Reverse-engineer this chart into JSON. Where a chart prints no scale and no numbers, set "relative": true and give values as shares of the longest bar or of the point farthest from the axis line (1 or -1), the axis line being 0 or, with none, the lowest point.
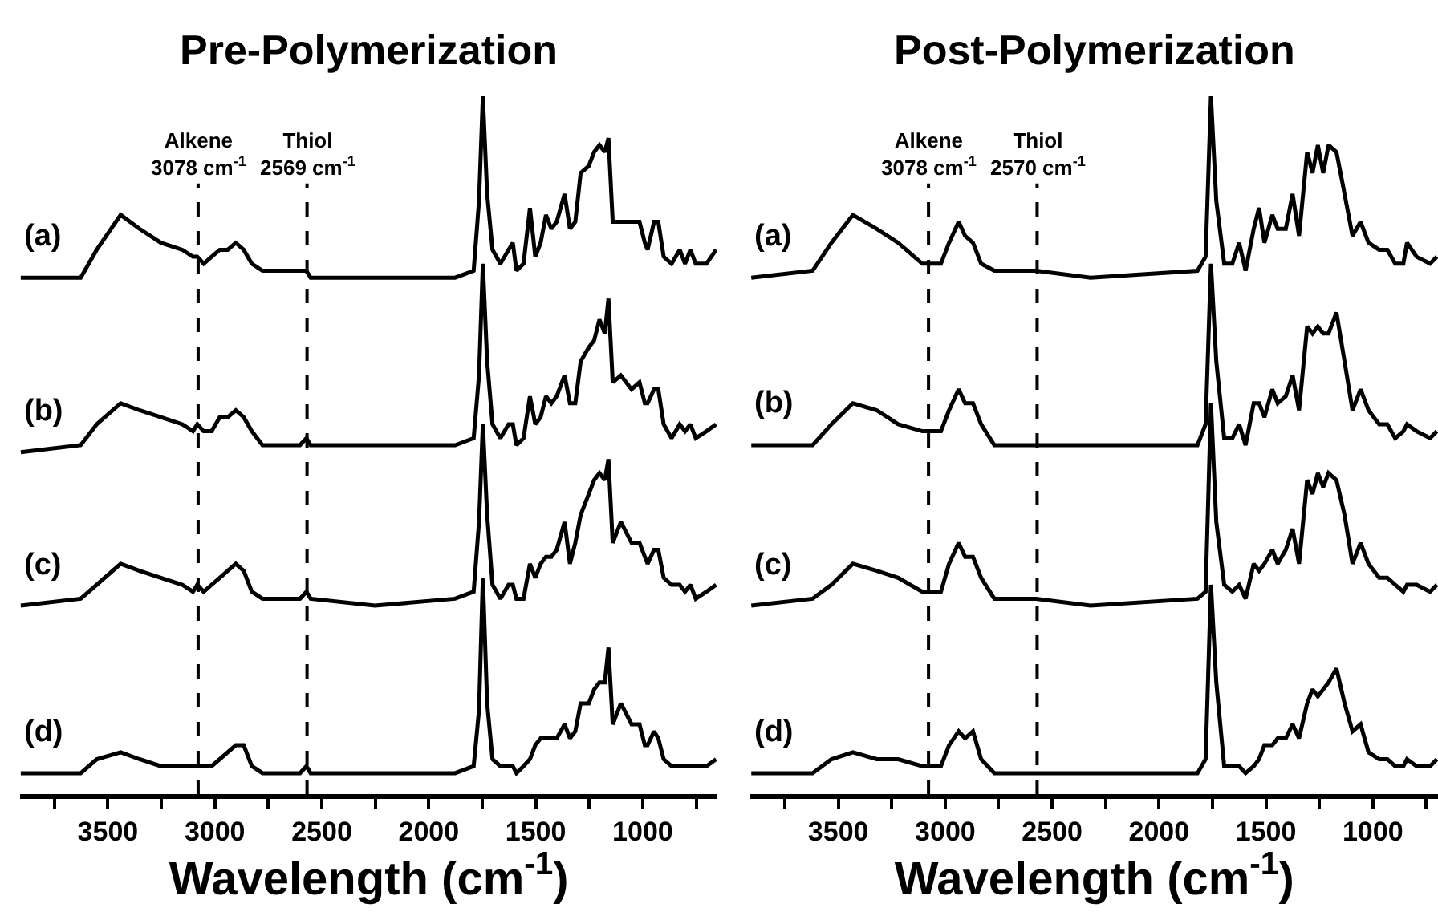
{
  "chart_data": [
    {
      "type": "line",
      "title": "Pre-Polymerization",
      "xlabel": "Wavelength (cm$^{-1}$)",
      "relative": true,
      "tick_labels": "x",
      "xlim": [
        3910,
        650
      ],
      "xticks": [
        {
          "value": 3750,
          "label": null
        },
        3500,
        {
          "value": 3250,
          "label": null
        },
        3000,
        {
          "value": 2750,
          "label": null
        },
        2500,
        {
          "value": 2250,
          "label": null
        },
        2000,
        {
          "value": 1750,
          "label": null
        },
        1500,
        {
          "value": 1250,
          "label": null
        },
        1000,
        {
          "value": 750,
          "label": null
        }
      ],
      "x": [
        3907,
        3627,
        3552,
        3440,
        3352,
        3252,
        3152,
        3102,
        3082,
        3052,
        3015,
        2977,
        2940,
        2902,
        2865,
        2827,
        2777,
        2702,
        2602,
        2572,
        2552,
        2252,
        1877,
        1790,
        1765,
        1747,
        1727,
        1702,
        1665,
        1627,
        1607,
        1590,
        1557,
        1527,
        1502,
        1477,
        1452,
        1427,
        1402,
        1365,
        1340,
        1315,
        1290,
        1252,
        1227,
        1202,
        1177,
        1160,
        1140,
        1102,
        1052,
        1015,
        990,
        977,
        947,
        927,
        902,
        865,
        827,
        802,
        777,
        752,
        702,
        657
      ],
      "ref_lines": [
        {
          "axis": "x",
          "value": 3078,
          "label": "Alkene\n3078 cm$^{-1}$",
          "color": "#000000",
          "line_style": "dashed"
        },
        {
          "axis": "x",
          "value": 2569,
          "label": "Thiol\n2569 cm$^{-1}$",
          "color": "#000000",
          "line_style": "dashed"
        }
      ],
      "series": [
        {
          "name": "(a)",
          "color": "#000000",
          "values": [
            0.74,
            0.74,
            0.78,
            0.83,
            0.81,
            0.79,
            0.78,
            0.77,
            0.77,
            0.76,
            0.77,
            0.78,
            0.78,
            0.79,
            0.78,
            0.76,
            0.75,
            0.75,
            0.75,
            0.75,
            0.74,
            0.74,
            0.74,
            0.75,
            0.85,
            1.0,
            0.86,
            0.78,
            0.76,
            0.78,
            0.79,
            0.75,
            0.76,
            0.84,
            0.77,
            0.79,
            0.83,
            0.81,
            0.82,
            0.86,
            0.81,
            0.82,
            0.89,
            0.9,
            0.92,
            0.93,
            0.92,
            0.94,
            0.82,
            0.82,
            0.82,
            0.82,
            0.79,
            0.78,
            0.82,
            0.82,
            0.77,
            0.76,
            0.78,
            0.76,
            0.78,
            0.76,
            0.76,
            0.78
          ]
        },
        {
          "name": "(b)",
          "color": "#000000",
          "values": [
            0.49,
            0.5,
            0.53,
            0.56,
            0.55,
            0.54,
            0.53,
            0.52,
            0.53,
            0.52,
            0.52,
            0.54,
            0.54,
            0.55,
            0.54,
            0.52,
            0.5,
            0.5,
            0.5,
            0.51,
            0.5,
            0.5,
            0.5,
            0.51,
            0.6,
            0.76,
            0.62,
            0.53,
            0.51,
            0.53,
            0.53,
            0.5,
            0.51,
            0.57,
            0.53,
            0.54,
            0.57,
            0.56,
            0.57,
            0.6,
            0.56,
            0.56,
            0.62,
            0.64,
            0.65,
            0.68,
            0.66,
            0.71,
            0.59,
            0.6,
            0.58,
            0.59,
            0.56,
            0.56,
            0.58,
            0.58,
            0.53,
            0.51,
            0.53,
            0.52,
            0.53,
            0.51,
            0.52,
            0.53
          ]
        },
        {
          "name": "(c)",
          "color": "#000000",
          "values": [
            0.27,
            0.28,
            0.3,
            0.33,
            0.32,
            0.31,
            0.3,
            0.29,
            0.3,
            0.29,
            0.3,
            0.31,
            0.32,
            0.33,
            0.32,
            0.29,
            0.28,
            0.28,
            0.28,
            0.29,
            0.28,
            0.27,
            0.28,
            0.29,
            0.39,
            0.53,
            0.4,
            0.3,
            0.28,
            0.3,
            0.3,
            0.28,
            0.28,
            0.33,
            0.31,
            0.33,
            0.34,
            0.34,
            0.35,
            0.39,
            0.33,
            0.36,
            0.4,
            0.43,
            0.45,
            0.46,
            0.45,
            0.48,
            0.36,
            0.39,
            0.36,
            0.36,
            0.34,
            0.33,
            0.35,
            0.35,
            0.31,
            0.3,
            0.3,
            0.29,
            0.3,
            0.28,
            0.29,
            0.3
          ]
        },
        {
          "name": "(d)",
          "color": "#000000",
          "values": [
            0.03,
            0.03,
            0.05,
            0.06,
            0.05,
            0.04,
            0.04,
            0.04,
            0.04,
            0.04,
            0.04,
            0.05,
            0.06,
            0.07,
            0.07,
            0.04,
            0.03,
            0.03,
            0.03,
            0.04,
            0.03,
            0.03,
            0.03,
            0.04,
            0.12,
            0.31,
            0.13,
            0.05,
            0.04,
            0.04,
            0.04,
            0.03,
            0.04,
            0.05,
            0.07,
            0.08,
            0.08,
            0.08,
            0.08,
            0.1,
            0.08,
            0.09,
            0.13,
            0.13,
            0.15,
            0.16,
            0.16,
            0.21,
            0.1,
            0.13,
            0.1,
            0.1,
            0.07,
            0.07,
            0.09,
            0.08,
            0.05,
            0.04,
            0.04,
            0.04,
            0.04,
            0.04,
            0.04,
            0.05
          ]
        }
      ]
    },
    {
      "type": "line",
      "title": "Post-Polymerization",
      "xlabel": "Wavelength (cm$^{-1}$)",
      "relative": true,
      "tick_labels": "x",
      "xlim": [
        3910,
        695
      ],
      "xticks": [
        {
          "value": 3750,
          "label": null
        },
        3500,
        {
          "value": 3250,
          "label": null
        },
        3000,
        {
          "value": 2750,
          "label": null
        },
        2500,
        {
          "value": 2250,
          "label": null
        },
        2000,
        {
          "value": 1750,
          "label": null
        },
        1500,
        {
          "value": 1250,
          "label": null
        },
        1000,
        {
          "value": 750,
          "label": null
        }
      ],
      "x": [
        3907,
        3620,
        3532,
        3432,
        3320,
        3220,
        3107,
        3070,
        3020,
        2982,
        2937,
        2907,
        2870,
        2832,
        2770,
        2575,
        2320,
        1820,
        1782,
        1757,
        1732,
        1695,
        1657,
        1625,
        1595,
        1557,
        1532,
        1507,
        1470,
        1445,
        1407,
        1375,
        1345,
        1307,
        1282,
        1257,
        1232,
        1207,
        1170,
        1132,
        1095,
        1057,
        1020,
        970,
        932,
        895,
        857,
        840,
        795,
        732,
        700
      ],
      "ref_lines": [
        {
          "axis": "x",
          "value": 3078,
          "label": "Alkene\n3078 cm$^{-1}$",
          "color": "#000000",
          "line_style": "dashed"
        },
        {
          "axis": "x",
          "value": 2570,
          "label": "Thiol\n2570 cm$^{-1}$",
          "color": "#000000",
          "line_style": "dashed"
        }
      ],
      "series": [
        {
          "name": "(a)",
          "color": "#000000",
          "values": [
            0.74,
            0.75,
            0.79,
            0.83,
            0.81,
            0.79,
            0.76,
            0.76,
            0.76,
            0.79,
            0.82,
            0.8,
            0.79,
            0.76,
            0.75,
            0.75,
            0.74,
            0.75,
            0.77,
            1.0,
            0.85,
            0.76,
            0.76,
            0.79,
            0.75,
            0.81,
            0.84,
            0.79,
            0.83,
            0.81,
            0.81,
            0.86,
            0.8,
            0.92,
            0.89,
            0.93,
            0.89,
            0.93,
            0.92,
            0.86,
            0.8,
            0.82,
            0.79,
            0.78,
            0.78,
            0.76,
            0.76,
            0.79,
            0.77,
            0.76,
            0.77
          ]
        },
        {
          "name": "(b)",
          "color": "#000000",
          "values": [
            0.5,
            0.5,
            0.53,
            0.56,
            0.55,
            0.53,
            0.52,
            0.52,
            0.52,
            0.55,
            0.58,
            0.56,
            0.56,
            0.53,
            0.5,
            0.5,
            0.5,
            0.5,
            0.53,
            0.76,
            0.62,
            0.51,
            0.51,
            0.53,
            0.5,
            0.56,
            0.56,
            0.54,
            0.58,
            0.56,
            0.57,
            0.6,
            0.55,
            0.67,
            0.66,
            0.67,
            0.66,
            0.66,
            0.69,
            0.62,
            0.55,
            0.58,
            0.55,
            0.53,
            0.53,
            0.51,
            0.52,
            0.53,
            0.52,
            0.51,
            0.52
          ]
        },
        {
          "name": "(c)",
          "color": "#000000",
          "values": [
            0.27,
            0.28,
            0.3,
            0.33,
            0.32,
            0.31,
            0.29,
            0.29,
            0.29,
            0.33,
            0.36,
            0.34,
            0.34,
            0.31,
            0.28,
            0.28,
            0.27,
            0.28,
            0.29,
            0.56,
            0.39,
            0.3,
            0.29,
            0.3,
            0.28,
            0.33,
            0.32,
            0.33,
            0.35,
            0.33,
            0.35,
            0.38,
            0.33,
            0.45,
            0.43,
            0.46,
            0.44,
            0.46,
            0.45,
            0.4,
            0.33,
            0.36,
            0.33,
            0.31,
            0.31,
            0.3,
            0.29,
            0.3,
            0.3,
            0.29,
            0.3
          ]
        },
        {
          "name": "(d)",
          "color": "#000000",
          "values": [
            0.03,
            0.03,
            0.05,
            0.06,
            0.05,
            0.05,
            0.04,
            0.04,
            0.04,
            0.07,
            0.09,
            0.08,
            0.09,
            0.05,
            0.03,
            0.03,
            0.03,
            0.03,
            0.05,
            0.3,
            0.16,
            0.04,
            0.04,
            0.04,
            0.03,
            0.04,
            0.05,
            0.07,
            0.07,
            0.08,
            0.08,
            0.1,
            0.08,
            0.13,
            0.15,
            0.14,
            0.15,
            0.16,
            0.18,
            0.13,
            0.09,
            0.1,
            0.06,
            0.05,
            0.05,
            0.04,
            0.04,
            0.05,
            0.04,
            0.04,
            0.05
          ]
        }
      ]
    }
  ]
}
